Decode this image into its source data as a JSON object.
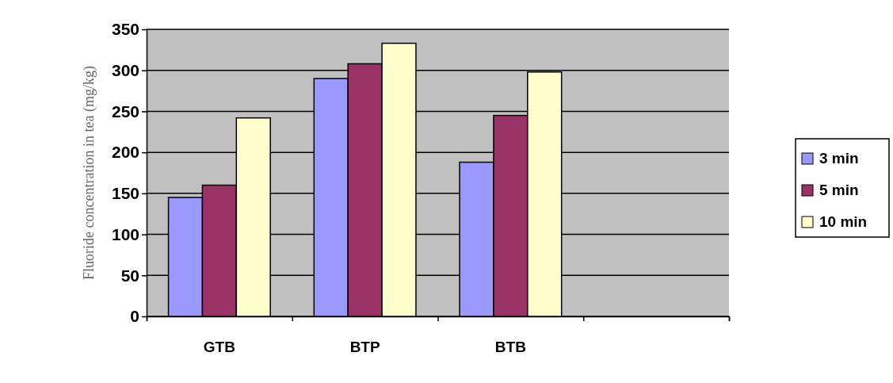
{
  "chart_data": {
    "type": "bar",
    "ylabel": "Fluoride concentration in tea (mg/kg)",
    "categories": [
      "GTB",
      "BTP",
      "BTB",
      null
    ],
    "series": [
      {
        "name": "3 min",
        "color": "#9999ff",
        "values": [
          145,
          290,
          188,
          null
        ]
      },
      {
        "name": "5 min",
        "color": "#993366",
        "values": [
          160,
          308,
          245,
          null
        ]
      },
      {
        "name": "10 min",
        "color": "#ffffcc",
        "values": [
          242,
          333,
          298,
          null
        ]
      }
    ],
    "ylim": [
      0,
      350
    ],
    "yticks": [
      0,
      50,
      100,
      150,
      200,
      250,
      300,
      350
    ],
    "grid": "y",
    "legend": "right"
  }
}
